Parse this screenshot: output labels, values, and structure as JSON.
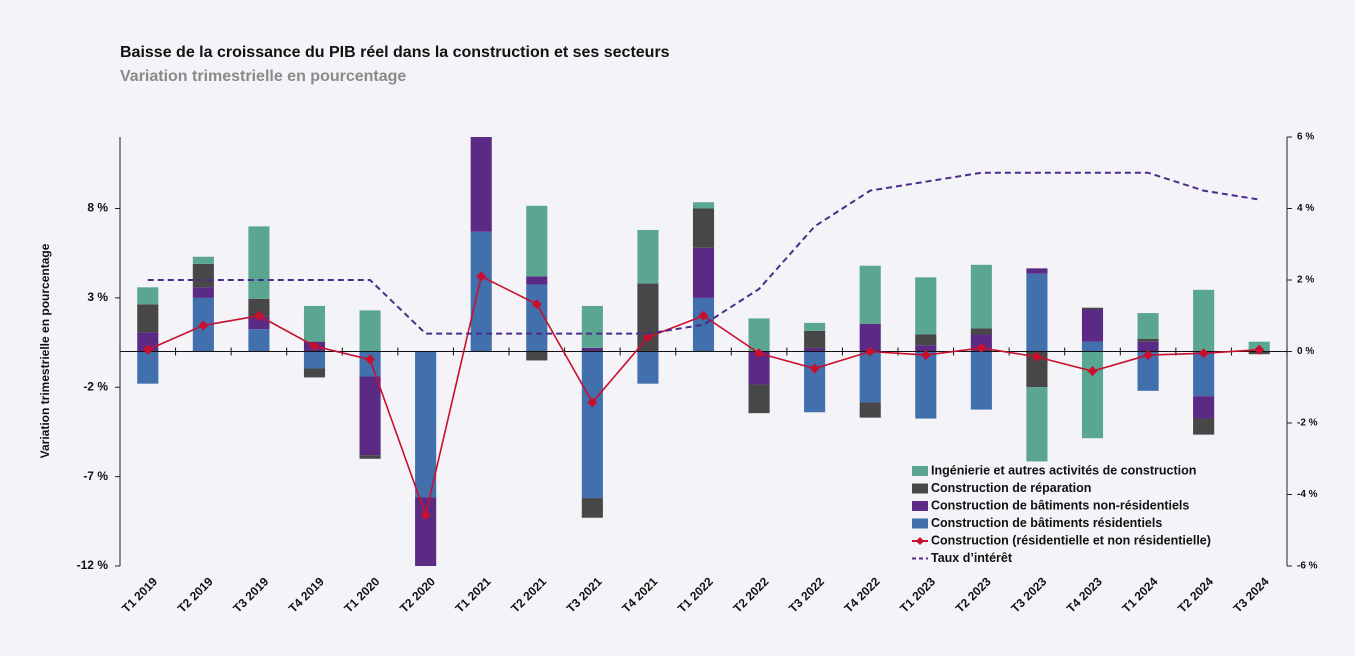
{
  "chart_data": {
    "type": "bar",
    "title": "Baisse de la croissance du PIB réel dans la construction et ses secteurs",
    "subtitle": "Variation trimestrielle en pourcentage",
    "ylabel": "Variation trimestrielle en pourcentage",
    "categories": [
      "T1 2019",
      "T2 2019",
      "T3 2019",
      "T4 2019",
      "T1 2020",
      "T2 2020",
      "T1 2021",
      "T2 2021",
      "T3 2021",
      "T4 2021",
      "T1 2022",
      "T2 2022",
      "T3 2022",
      "T4 2022",
      "T1 2023",
      "T2 2023",
      "T3 2023",
      "T4 2023",
      "T1 2024",
      "T2 2024",
      "T3 2024"
    ],
    "ylim": [
      -12,
      12
    ],
    "yticks": [
      {
        "value": -12,
        "label": "-12 %"
      },
      {
        "value": -7,
        "label": "-7 %"
      },
      {
        "value": -2,
        "label": "-2 %"
      },
      {
        "value": 3,
        "label": "3 %"
      },
      {
        "value": 8,
        "label": "8 %"
      }
    ],
    "y2lim": [
      -6,
      6
    ],
    "y2ticks": [
      {
        "value": -6,
        "label": "-6 %"
      },
      {
        "value": -4,
        "label": "-4 %"
      },
      {
        "value": -2,
        "label": "-2 %"
      },
      {
        "value": 0,
        "label": "0 %"
      },
      {
        "value": 2,
        "label": "2 %"
      },
      {
        "value": 4,
        "label": "4 %"
      },
      {
        "value": 6,
        "label": "6 %"
      }
    ],
    "legend": "lower right",
    "series": [
      {
        "name": "Construction de bâtiments résidentiels",
        "type": "bar",
        "color": "#4170ad",
        "values": [
          -1.8,
          3.0,
          1.25,
          -0.95,
          -1.4,
          -8.15,
          6.7,
          3.75,
          -8.2,
          -1.8,
          3.0,
          0,
          -3.4,
          -2.85,
          -3.75,
          -3.25,
          4.35,
          0.55,
          -2.2,
          -2.5,
          0
        ]
      },
      {
        "name": "Construction de bâtiments non-résidentiels",
        "type": "bar",
        "color": "#5a2a85",
        "values": [
          1.07,
          0.6,
          0.7,
          0.55,
          -4.4,
          -3.9,
          5.3,
          0.45,
          0.2,
          0,
          2.8,
          -1.85,
          0.2,
          1.55,
          0.35,
          0.95,
          0.3,
          1.8,
          0.55,
          -1.25,
          0
        ]
      },
      {
        "name": "Construction de réparation",
        "type": "bar",
        "color": "#474747",
        "values": [
          1.57,
          1.3,
          1.0,
          -0.5,
          -0.2,
          0,
          0,
          -0.5,
          -1.1,
          3.8,
          2.2,
          -1.6,
          0.95,
          -0.85,
          0.6,
          0.35,
          -2.0,
          0.1,
          0.15,
          -0.9,
          -0.15
        ]
      },
      {
        "name": "Ingénierie et autres activités de construction",
        "type": "bar",
        "color": "#5ba692",
        "values": [
          0.95,
          0.4,
          4.05,
          2.0,
          2.3,
          0,
          0,
          3.95,
          2.35,
          3.0,
          0.35,
          1.85,
          0.45,
          3.25,
          3.2,
          3.55,
          -4.15,
          -4.85,
          1.45,
          3.45,
          0.55
        ]
      },
      {
        "name": "Construction (résidentielle et non résidentielle)",
        "type": "line",
        "marker": "diamond",
        "color": "#c8102e",
        "values": [
          0.1,
          1.46,
          2.0,
          0.3,
          -0.45,
          -9.15,
          4.2,
          2.65,
          -2.85,
          0.8,
          2.0,
          -0.1,
          -0.95,
          0,
          -0.2,
          0.2,
          -0.3,
          -1.1,
          -0.2,
          -0.1,
          0.1
        ]
      },
      {
        "name": "Taux d’intérêt",
        "type": "line",
        "dashed": true,
        "axis": "y2",
        "color": "#4b2c8a",
        "values": [
          2.0,
          2.0,
          2.0,
          2.0,
          2.0,
          0.5,
          0.5,
          0.5,
          0.5,
          0.5,
          0.75,
          1.75,
          3.5,
          4.5,
          4.75,
          5.0,
          5.0,
          5.0,
          5.0,
          4.5,
          4.25
        ]
      }
    ]
  }
}
